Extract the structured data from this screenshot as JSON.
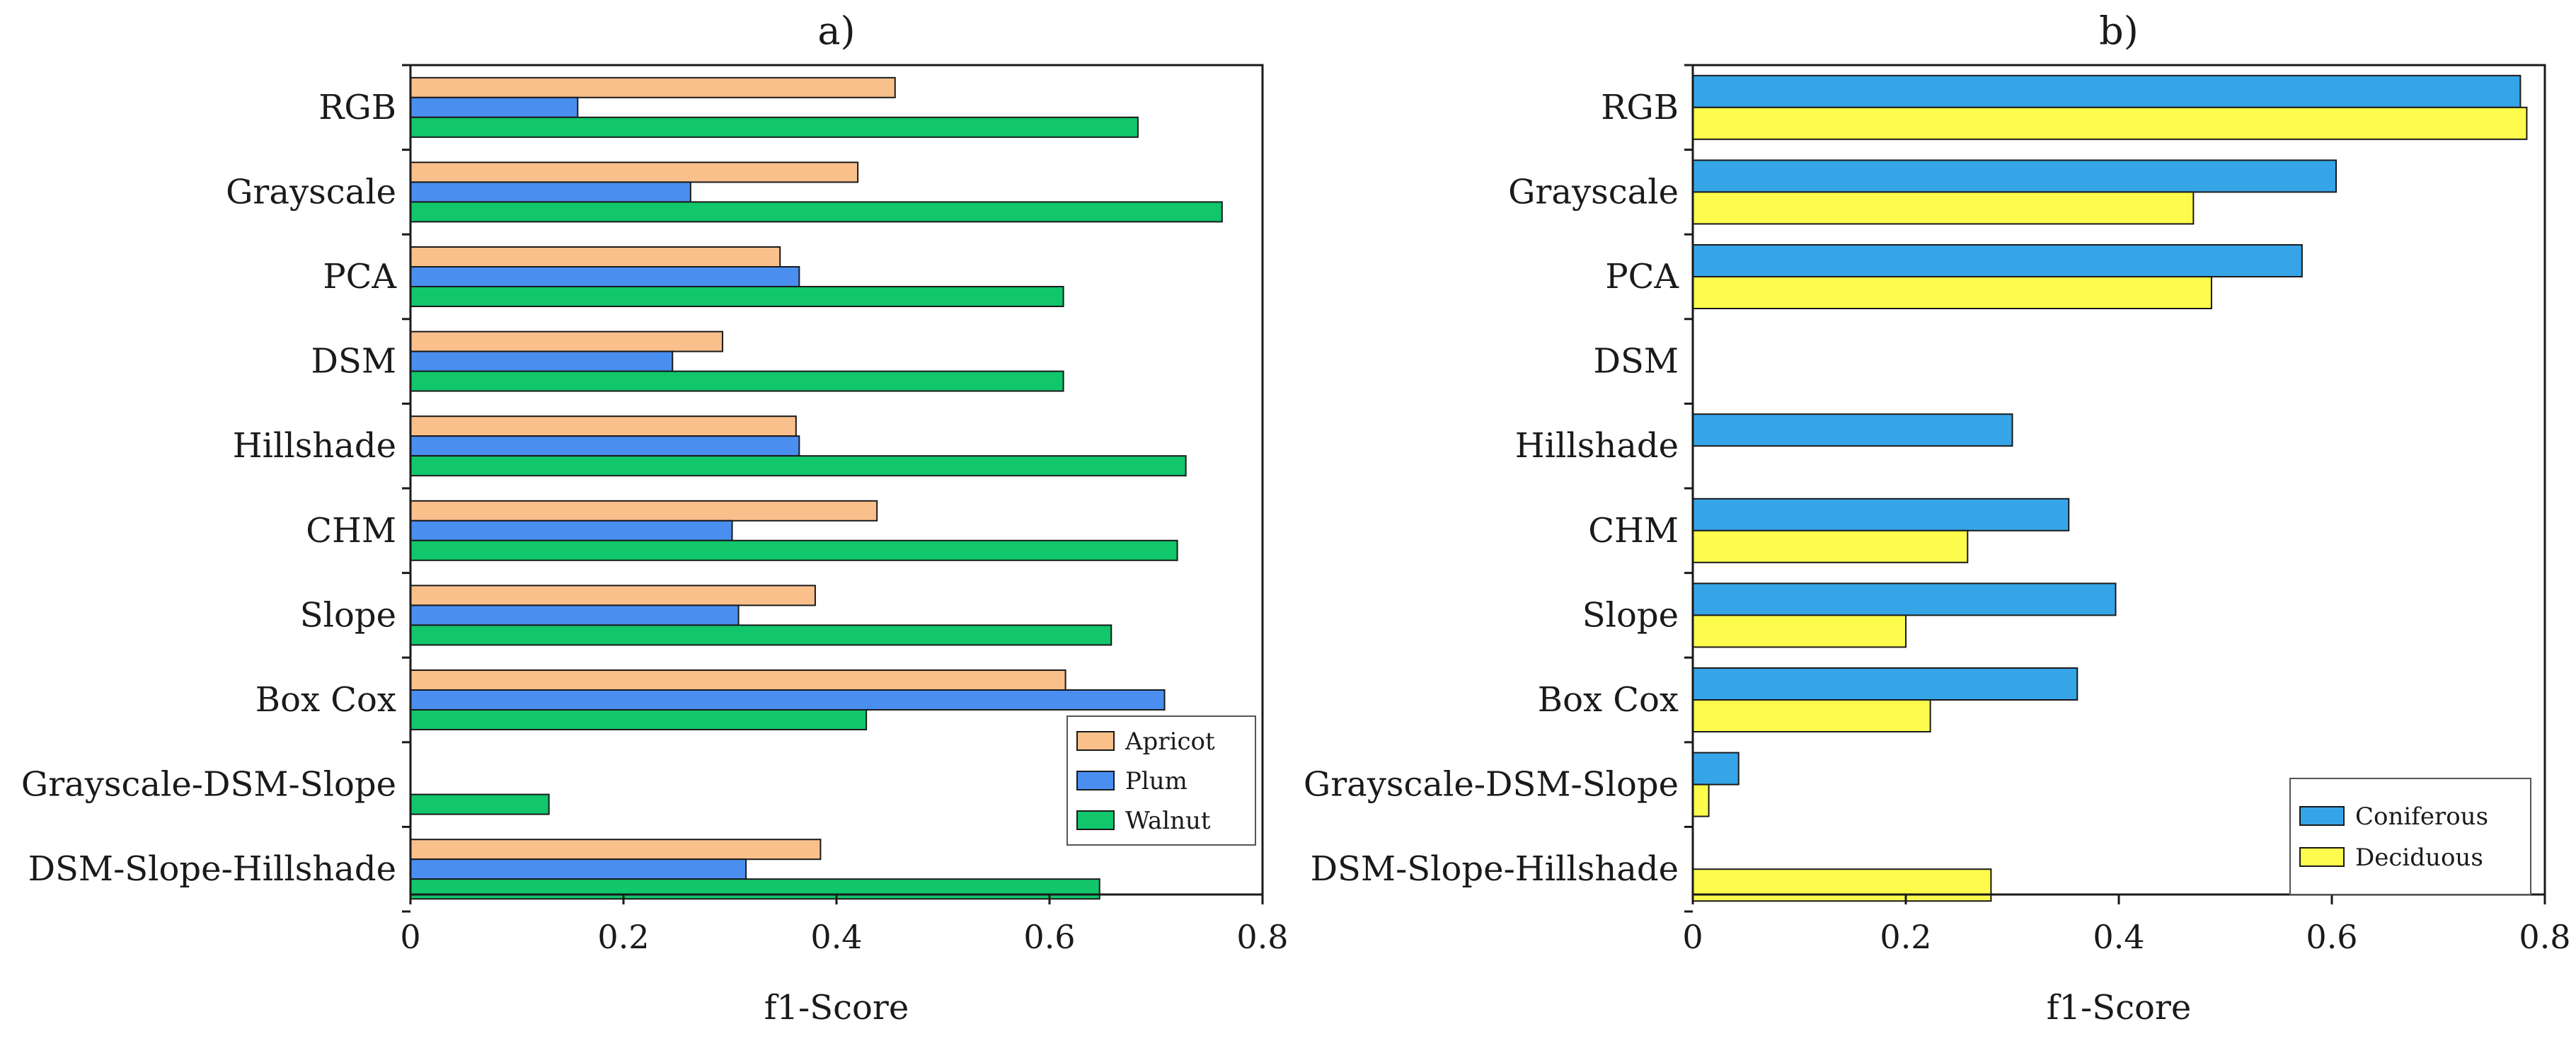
{
  "chart_data": [
    {
      "type": "bar",
      "orientation": "horizontal",
      "title": "a)",
      "xlabel": "f1-Score",
      "ylabel": "",
      "xlim": [
        0,
        0.8
      ],
      "xticks": [
        0,
        0.2,
        0.4,
        0.6,
        0.8
      ],
      "xtick_labels": [
        "0",
        "0.2",
        "0.4",
        "0.6",
        "0.8"
      ],
      "grid": false,
      "legend_position": "bottom-right",
      "categories": [
        "RGB",
        "Grayscale",
        "PCA",
        "DSM",
        "Hillshade",
        "CHM",
        "Slope",
        "Box Cox",
        "Grayscale-DSM-Slope",
        "DSM-Slope-Hillshade"
      ],
      "series": [
        {
          "name": "Apricot",
          "color": "#f9c08c",
          "values": [
            0.455,
            0.42,
            0.347,
            0.293,
            0.362,
            0.438,
            0.38,
            0.615,
            null,
            0.385
          ]
        },
        {
          "name": "Plum",
          "color": "#4a8ff0",
          "values": [
            0.157,
            0.263,
            0.365,
            0.246,
            0.365,
            0.302,
            0.308,
            0.708,
            null,
            0.315
          ]
        },
        {
          "name": "Walnut",
          "color": "#11c66b",
          "values": [
            0.683,
            0.762,
            0.613,
            0.613,
            0.728,
            0.72,
            0.658,
            0.428,
            0.13,
            0.647
          ]
        }
      ]
    },
    {
      "type": "bar",
      "orientation": "horizontal",
      "title": "b)",
      "xlabel": "f1-Score",
      "ylabel": "",
      "xlim": [
        0,
        0.8
      ],
      "xticks": [
        0,
        0.2,
        0.4,
        0.6,
        0.8
      ],
      "xtick_labels": [
        "0",
        "0.2",
        "0.4",
        "0.6",
        "0.8"
      ],
      "grid": false,
      "legend_position": "bottom-right",
      "categories": [
        "RGB",
        "Grayscale",
        "PCA",
        "DSM",
        "Hillshade",
        "CHM",
        "Slope",
        "Box Cox",
        "Grayscale-DSM-Slope",
        "DSM-Slope-Hillshade"
      ],
      "series": [
        {
          "name": "Coniferous",
          "color": "#36a5e8",
          "values": [
            0.777,
            0.604,
            0.572,
            null,
            0.3,
            0.353,
            0.397,
            0.361,
            0.043,
            null
          ]
        },
        {
          "name": "Deciduous",
          "color": "#fdfc4c",
          "values": [
            0.783,
            0.47,
            0.487,
            null,
            null,
            0.258,
            0.2,
            0.223,
            0.015,
            0.28
          ]
        }
      ]
    }
  ]
}
